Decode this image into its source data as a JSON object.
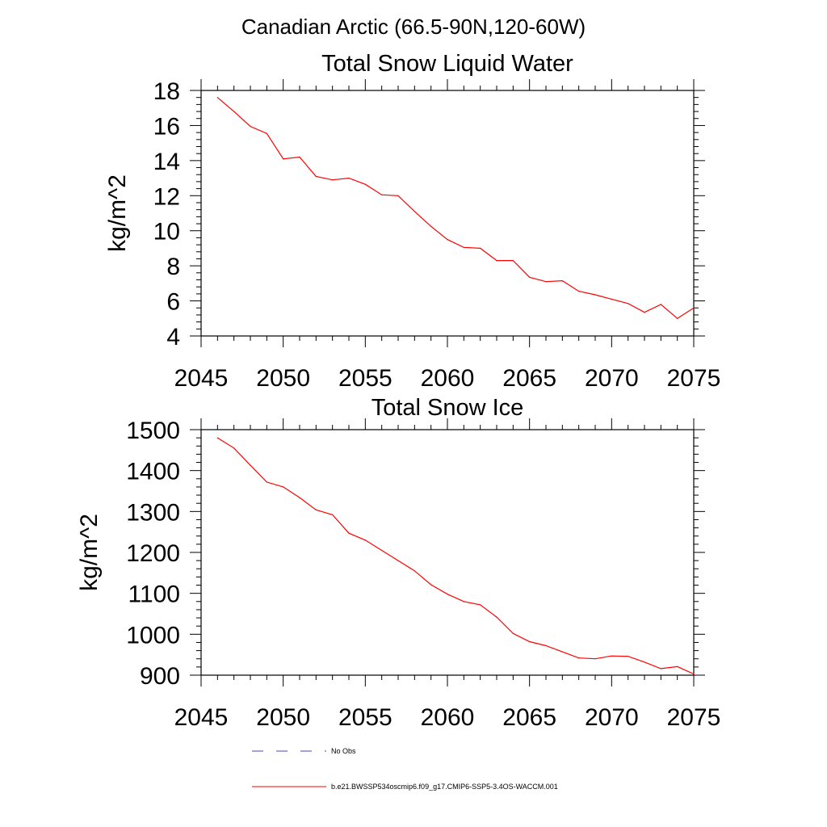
{
  "suptitle": "Canadian Arctic (66.5-90N,120-60W)",
  "colors": {
    "series": "#ff0000",
    "obs": "#4a4ab0",
    "axis": "#000000"
  },
  "legend": {
    "entries": [
      {
        "label": "No Obs",
        "style": "dashed",
        "color": "#4a4ab0"
      },
      {
        "label": "b.e21.BWSSP534oscmip6.f09_g17.CMIP6-SSP5-3.4OS-WACCM.001",
        "style": "solid",
        "color": "#ff0000"
      }
    ]
  },
  "chart_data": [
    {
      "type": "line",
      "title": "Total Snow Liquid Water",
      "xlabel": "",
      "ylabel": "kg/m^2",
      "xlim": [
        2045,
        2075
      ],
      "ylim": [
        4,
        18
      ],
      "xticks": [
        2045,
        2050,
        2055,
        2060,
        2065,
        2070,
        2075
      ],
      "yticks": [
        4,
        6,
        8,
        10,
        12,
        14,
        16,
        18
      ],
      "ytick_labels": [
        "4",
        "6",
        "8",
        "10",
        "12",
        "14",
        "16",
        "18"
      ],
      "series": [
        {
          "name": "b.e21.BWSSP534oscmip6.f09_g17.CMIP6-SSP5-3.4OS-WACCM.001",
          "x": [
            2046,
            2047,
            2048,
            2049,
            2050,
            2051,
            2052,
            2053,
            2054,
            2055,
            2056,
            2057,
            2058,
            2059,
            2060,
            2061,
            2062,
            2063,
            2064,
            2065,
            2066,
            2067,
            2068,
            2069,
            2070,
            2071,
            2072,
            2073,
            2074,
            2075
          ],
          "values": [
            17.6,
            16.8,
            15.95,
            15.55,
            14.1,
            14.2,
            13.1,
            12.9,
            13.0,
            12.65,
            12.05,
            12.0,
            11.1,
            10.25,
            9.5,
            9.05,
            9.0,
            8.3,
            8.3,
            7.35,
            7.1,
            7.15,
            6.55,
            6.35,
            6.1,
            5.85,
            5.35,
            5.8,
            5.0,
            5.6
          ]
        }
      ]
    },
    {
      "type": "line",
      "title": "Total Snow Ice",
      "xlabel": "",
      "ylabel": "kg/m^2",
      "xlim": [
        2045,
        2075
      ],
      "ylim": [
        900,
        1500
      ],
      "xticks": [
        2045,
        2050,
        2055,
        2060,
        2065,
        2070,
        2075
      ],
      "yticks": [
        900,
        1000,
        1100,
        1200,
        1300,
        1400,
        1500
      ],
      "ytick_labels": [
        "900",
        "1000",
        "1100",
        "1200",
        "1300",
        "1400",
        "1500"
      ],
      "series": [
        {
          "name": "b.e21.BWSSP534oscmip6.f09_g17.CMIP6-SSP5-3.4OS-WACCM.001",
          "x": [
            2046,
            2047,
            2048,
            2049,
            2050,
            2051,
            2052,
            2053,
            2054,
            2055,
            2056,
            2057,
            2058,
            2059,
            2060,
            2061,
            2062,
            2063,
            2064,
            2065,
            2066,
            2067,
            2068,
            2069,
            2070,
            2071,
            2072,
            2073,
            2074,
            2075
          ],
          "values": [
            1480,
            1455,
            1413,
            1372,
            1360,
            1334,
            1304,
            1292,
            1247,
            1230,
            1205,
            1180,
            1155,
            1121,
            1098,
            1080,
            1072,
            1042,
            1002,
            982,
            972,
            957,
            942,
            940,
            947,
            946,
            932,
            916,
            921,
            903
          ]
        }
      ]
    }
  ]
}
